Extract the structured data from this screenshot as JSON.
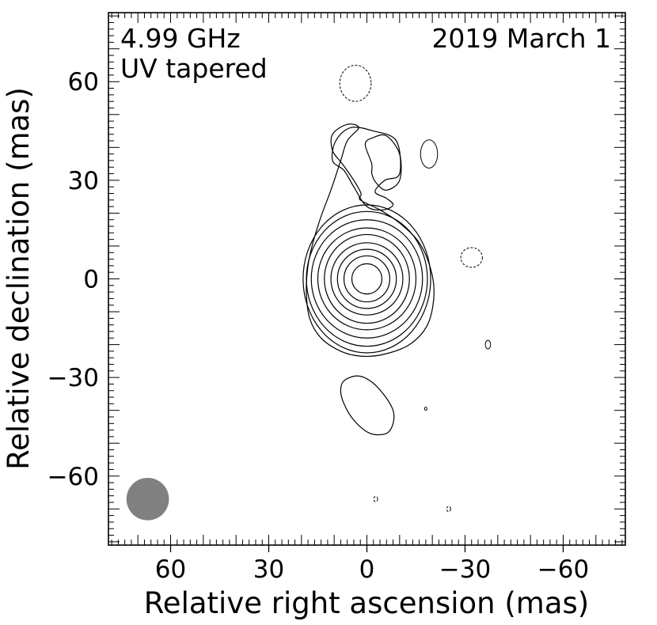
{
  "chart_data": {
    "type": "contour",
    "title": "",
    "annotations": {
      "frequency": "4.99 GHz",
      "taper": "UV tapered",
      "date": "2019 March 1"
    },
    "xlabel": "Relative right ascension (mas)",
    "ylabel": "Relative declination (mas)",
    "xlim": [
      79,
      -79
    ],
    "ylim": [
      -81,
      81
    ],
    "x_ticks": [
      60,
      30,
      0,
      -30,
      -60
    ],
    "x_tick_labels": [
      "60",
      "30",
      "0",
      "−30",
      "−60"
    ],
    "y_ticks": [
      60,
      30,
      0,
      -30,
      -60
    ],
    "y_tick_labels": [
      "60",
      "30",
      "0",
      "−30",
      "−60"
    ],
    "core": {
      "center": [
        0,
        0
      ],
      "ring_radii": [
        [
          4.6,
          4.6
        ],
        [
          7,
          7
        ],
        [
          9,
          9
        ],
        [
          11,
          11
        ],
        [
          13,
          13.5
        ],
        [
          15,
          15.5
        ],
        [
          17,
          18
        ],
        [
          18.5,
          20.5
        ],
        [
          19.5,
          22.5
        ]
      ]
    },
    "outer_contours": [
      [
        [
          2.5,
          46
        ],
        [
          6,
          47
        ],
        [
          10.5,
          44
        ],
        [
          10.5,
          39
        ],
        [
          7.5,
          35
        ],
        [
          4,
          30
        ],
        [
          1.8,
          26
        ],
        [
          2,
          24
        ],
        [
          -4,
          21
        ],
        [
          -10,
          17
        ],
        [
          -16,
          11
        ],
        [
          -19.5,
          3
        ],
        [
          -20.5,
          -5
        ],
        [
          -18.5,
          -14
        ],
        [
          -13,
          -20
        ],
        [
          -5,
          -23
        ],
        [
          2,
          -23.5
        ],
        [
          8,
          -22
        ],
        [
          14,
          -18
        ],
        [
          17.5,
          -12
        ],
        [
          18.5,
          -4
        ],
        [
          18,
          4
        ],
        [
          16.5,
          11
        ],
        [
          14,
          19
        ],
        [
          11,
          27
        ],
        [
          8,
          36
        ],
        [
          6,
          42
        ]
      ],
      [
        [
          -1.5,
          35
        ],
        [
          0.5,
          41
        ],
        [
          -2,
          43
        ],
        [
          -6,
          43.5
        ],
        [
          -10,
          38
        ],
        [
          -10,
          30
        ],
        [
          -6,
          27
        ],
        [
          -3,
          29
        ],
        [
          -1.5,
          32
        ]
      ],
      [
        [
          -2.5,
          26.5
        ],
        [
          -5.5,
          30
        ],
        [
          -10,
          32
        ],
        [
          -9,
          42
        ],
        [
          -2,
          45
        ],
        [
          5,
          46
        ],
        [
          9.5,
          42
        ],
        [
          10.5,
          36
        ],
        [
          7,
          33
        ],
        [
          4,
          28
        ],
        [
          0,
          22
        ],
        [
          -5,
          21
        ],
        [
          -8,
          22.5
        ],
        [
          -6,
          24.5
        ]
      ]
    ],
    "blobs": [
      {
        "center": [
          -19,
          38
        ],
        "radii": [
          2.6,
          4.3
        ],
        "dashed": false
      },
      {
        "center": [
          3.5,
          59.5
        ],
        "radii": [
          4.8,
          5.5
        ],
        "dashed": true
      },
      {
        "center": [
          -32,
          6.5
        ],
        "radii": [
          3.3,
          3.0
        ],
        "dashed": true
      },
      {
        "center": [
          -37,
          -20
        ],
        "radii": [
          0.8,
          1.3
        ],
        "dashed": false
      },
      {
        "center": [
          -18,
          -39.5
        ],
        "radii": [
          0.35,
          0.5
        ],
        "dashed": false
      },
      {
        "center": [
          -2.7,
          -67
        ],
        "radii": [
          0.6,
          0.8
        ],
        "dashed": true
      },
      {
        "center": [
          -25,
          -70
        ],
        "radii": [
          0.6,
          0.8
        ],
        "dashed": true
      }
    ],
    "southern_component": [
      [
        7,
        -31
      ],
      [
        3,
        -29.5
      ],
      [
        -1,
        -31
      ],
      [
        -5,
        -35
      ],
      [
        -8,
        -40
      ],
      [
        -8,
        -44
      ],
      [
        -6,
        -47
      ],
      [
        -1,
        -47
      ],
      [
        4,
        -43
      ],
      [
        7,
        -38
      ],
      [
        8,
        -34
      ]
    ],
    "beam": {
      "center": [
        67,
        -67
      ],
      "radius": 6.5,
      "color": "#808080"
    }
  }
}
